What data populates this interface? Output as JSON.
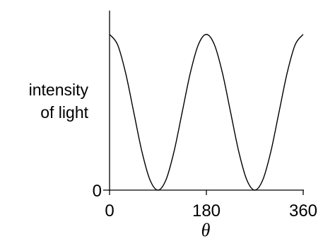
{
  "chart_data": {
    "type": "line",
    "title": "",
    "xlabel": "θ",
    "ylabel_lines": [
      "intensity",
      "of light"
    ],
    "x_ticks": [
      "0",
      "180",
      "360"
    ],
    "y_ticks": [
      "0"
    ],
    "xlim": [
      0,
      360
    ],
    "ylim": [
      0,
      1.08
    ],
    "grid": false,
    "series": [
      {
        "x": [
          0,
          15,
          30,
          45,
          60,
          75,
          90,
          105,
          120,
          135,
          150,
          165,
          180,
          195,
          210,
          225,
          240,
          255,
          270,
          285,
          300,
          315,
          330,
          345,
          360
        ],
        "values": [
          1.0,
          0.933,
          0.75,
          0.5,
          0.25,
          0.067,
          0.0,
          0.067,
          0.25,
          0.5,
          0.75,
          0.933,
          1.0,
          0.933,
          0.75,
          0.5,
          0.25,
          0.067,
          0.0,
          0.067,
          0.25,
          0.5,
          0.75,
          0.933,
          1.0
        ]
      }
    ]
  }
}
